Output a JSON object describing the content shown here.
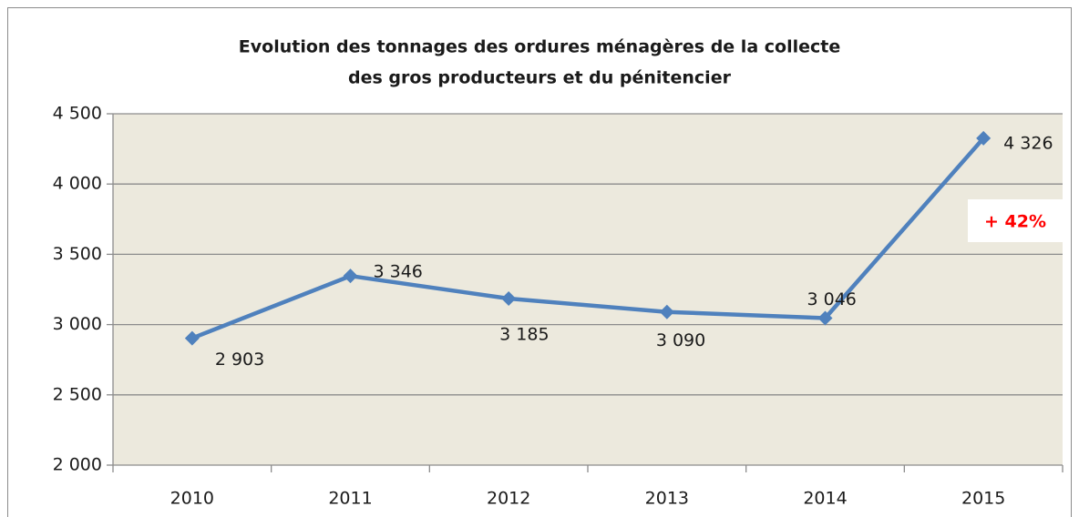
{
  "chart_data": {
    "type": "line",
    "title": [
      "Evolution des tonnages des ordures ménagères de la collecte",
      "des gros producteurs et du pénitencier"
    ],
    "categories": [
      "2010",
      "2011",
      "2012",
      "2013",
      "2014",
      "2015"
    ],
    "values": [
      2903,
      3346,
      3185,
      3090,
      3046,
      4326
    ],
    "value_labels": [
      "2 903",
      "3 346",
      "3 185",
      "3 090",
      "3 046",
      "4 326"
    ],
    "color": "#4f81bd",
    "ylim": [
      2000,
      4500
    ],
    "yticks": [
      {
        "value": 2000,
        "label": "2 000"
      },
      {
        "value": 2500,
        "label": "2 500"
      },
      {
        "value": 3000,
        "label": "3 000"
      },
      {
        "value": 3500,
        "label": "3 500"
      },
      {
        "value": 4000,
        "label": "4 000"
      },
      {
        "value": 4500,
        "label": "4 500"
      }
    ],
    "grid": true,
    "annotation": "+ 42%"
  }
}
